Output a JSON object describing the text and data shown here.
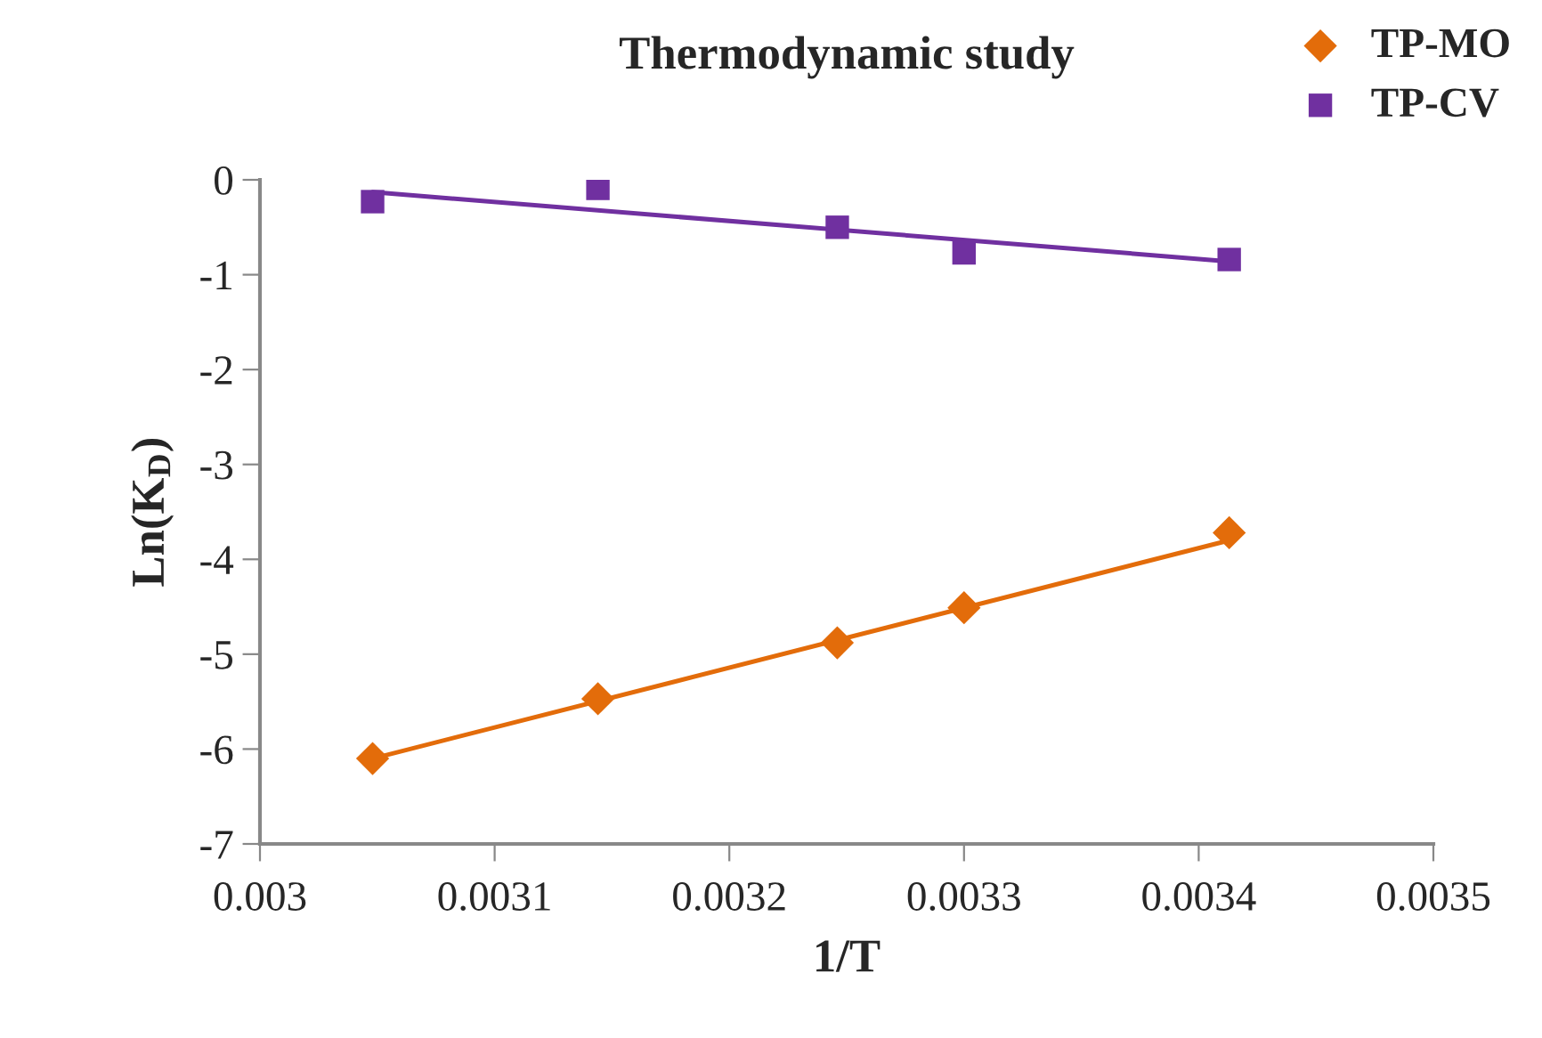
{
  "chart_data": {
    "type": "scatter",
    "title": "Thermodynamic study",
    "xlabel": "1/T",
    "ylabel": "Ln(K$_{D}$)",
    "series": [
      {
        "name": "TP-MO",
        "color": "#e36c0a",
        "marker": "diamond",
        "x": [
          0.003048,
          0.003144,
          0.003246,
          0.0033,
          0.003413
        ],
        "values": [
          -6.1,
          -5.47,
          -4.88,
          -4.51,
          -3.72
        ]
      },
      {
        "name": "TP-CV",
        "color": "#7030a0",
        "marker": "square",
        "x": [
          0.003048,
          0.003144,
          0.003246,
          0.0033,
          0.003413
        ],
        "values": [
          -0.23,
          -0.09,
          -0.5,
          -0.77,
          -0.84
        ]
      },
      {
        "type": "line",
        "color": "#e36c0a",
        "x": [
          0.003048,
          0.003413
        ],
        "values": [
          -6.1,
          -3.8
        ]
      },
      {
        "type": "line",
        "color": "#7030a0",
        "x": [
          0.003048,
          0.003413
        ],
        "values": [
          -0.13,
          -0.86
        ]
      }
    ],
    "xlim": [
      0.003,
      0.0035
    ],
    "xticks": [
      0.003,
      0.0031,
      0.0032,
      0.0033,
      0.0034,
      0.0035
    ],
    "ylim": [
      -7,
      0
    ],
    "yticks": [
      -7,
      -6,
      -5,
      -4,
      -3,
      -2,
      -1,
      0
    ],
    "grid": false,
    "legend": "top right"
  }
}
